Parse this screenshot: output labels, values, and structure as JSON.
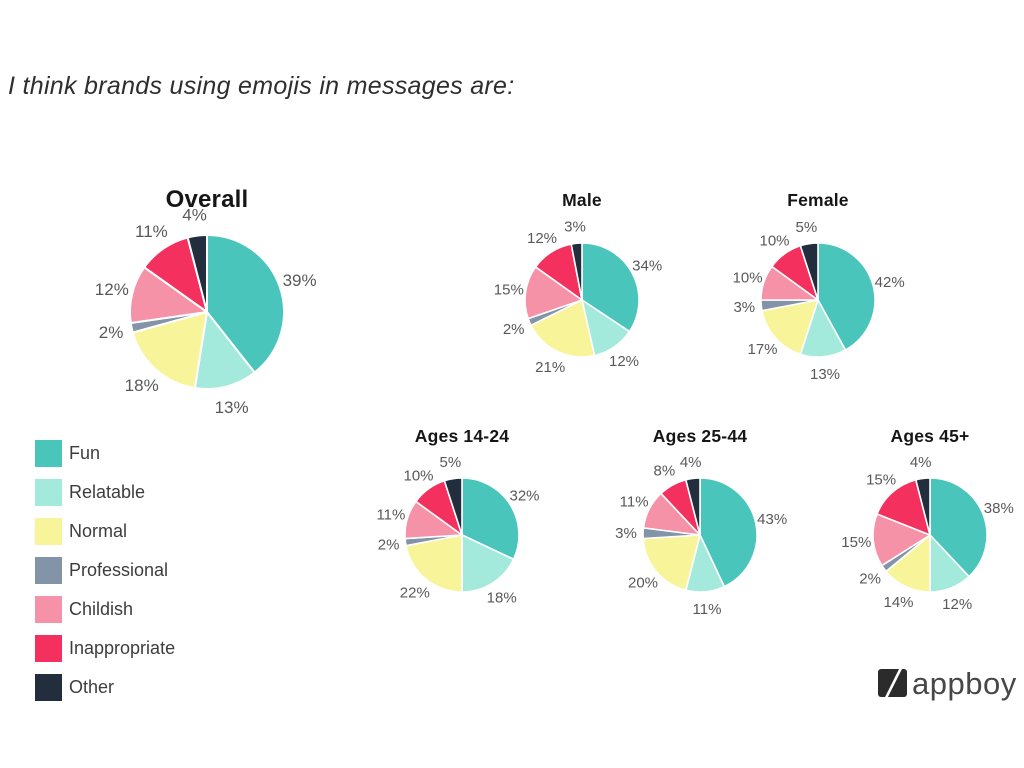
{
  "page": {
    "title": "I think brands using emojis in messages are:"
  },
  "categories": [
    "Fun",
    "Relatable",
    "Normal",
    "Professional",
    "Childish",
    "Inappropriate",
    "Other"
  ],
  "palette": {
    "fun": "#4AC5BC",
    "relatable": "#A3EADD",
    "normal": "#F8F49A",
    "professional": "#8494A8",
    "childish": "#F592A7",
    "inappropriate": "#F4315E",
    "other": "#222E3D"
  },
  "legend": {
    "position": "left",
    "items": [
      {
        "label": "Fun",
        "color": "#4AC5BC"
      },
      {
        "label": "Relatable",
        "color": "#A3EADD"
      },
      {
        "label": "Normal",
        "color": "#F8F49A"
      },
      {
        "label": "Professional",
        "color": "#8494A8"
      },
      {
        "label": "Childish",
        "color": "#F592A7"
      },
      {
        "label": "Inappropriate",
        "color": "#F4315E"
      },
      {
        "label": "Other",
        "color": "#222E3D"
      }
    ]
  },
  "chart_data": [
    {
      "type": "pie",
      "title": "Overall",
      "unit": "%",
      "start_angle_deg": 0,
      "direction": "clockwise",
      "categories": [
        "Fun",
        "Relatable",
        "Normal",
        "Professional",
        "Childish",
        "Inappropriate",
        "Other"
      ],
      "values": [
        39,
        13,
        18,
        2,
        12,
        11,
        4
      ]
    },
    {
      "type": "pie",
      "title": "Male",
      "unit": "%",
      "start_angle_deg": 0,
      "direction": "clockwise",
      "categories": [
        "Fun",
        "Relatable",
        "Normal",
        "Professional",
        "Childish",
        "Inappropriate",
        "Other"
      ],
      "values": [
        34,
        12,
        21,
        2,
        15,
        12,
        3
      ]
    },
    {
      "type": "pie",
      "title": "Female",
      "unit": "%",
      "start_angle_deg": 0,
      "direction": "clockwise",
      "categories": [
        "Fun",
        "Relatable",
        "Normal",
        "Professional",
        "Childish",
        "Inappropriate",
        "Other"
      ],
      "values": [
        42,
        13,
        17,
        3,
        10,
        10,
        5
      ]
    },
    {
      "type": "pie",
      "title": "Ages 14-24",
      "unit": "%",
      "start_angle_deg": 0,
      "direction": "clockwise",
      "categories": [
        "Fun",
        "Relatable",
        "Normal",
        "Professional",
        "Childish",
        "Inappropriate",
        "Other"
      ],
      "values": [
        32,
        18,
        22,
        2,
        11,
        10,
        5
      ]
    },
    {
      "type": "pie",
      "title": "Ages 25-44",
      "unit": "%",
      "start_angle_deg": 0,
      "direction": "clockwise",
      "categories": [
        "Fun",
        "Relatable",
        "Normal",
        "Professional",
        "Childish",
        "Inappropriate",
        "Other"
      ],
      "values": [
        43,
        11,
        20,
        3,
        11,
        8,
        4
      ]
    },
    {
      "type": "pie",
      "title": "Ages 45+",
      "unit": "%",
      "start_angle_deg": 0,
      "direction": "clockwise",
      "categories": [
        "Fun",
        "Relatable",
        "Normal",
        "Professional",
        "Childish",
        "Inappropriate",
        "Other"
      ],
      "values": [
        38,
        12,
        14,
        2,
        15,
        15,
        4
      ]
    }
  ],
  "logo": {
    "text": "appboy"
  }
}
